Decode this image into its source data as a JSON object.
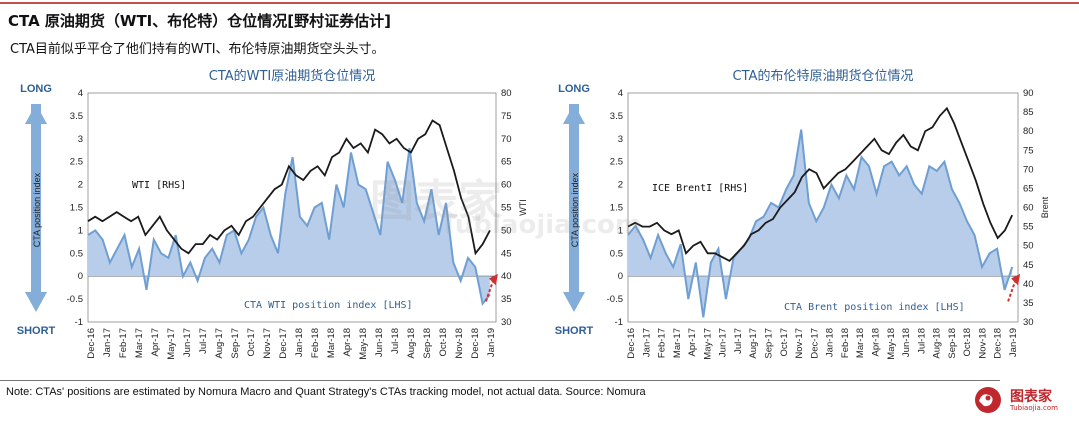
{
  "header": {
    "title": "CTA 原油期货（WTI、布伦特）仓位情况[野村证券估计]",
    "subtitle": "CTA目前似乎平仓了他们持有的WTI、布伦特原油期货空头头寸。"
  },
  "footer": {
    "note": "Note: CTAs' positions are estimated by Nomura Macro and Quant Strategy's CTAs tracking model, not actual data. Source: Nomura",
    "logo_text": "图表家",
    "logo_url": "Tubiaojia.com"
  },
  "colors": {
    "price_line": "#1a1a1a",
    "area_fill": "#b8cde9",
    "area_line": "#6f9fd2",
    "arrow_blue": "#6f9fd2",
    "arrow_red": "#d03030",
    "title_blue": "#2f5f95"
  },
  "chart_data": [
    {
      "type": "area",
      "title": "CTA的WTI原油期货仓位情况",
      "long_label": "LONG",
      "short_label": "SHORT",
      "ylabel": "CTA position index",
      "y2label": "WTI",
      "ylim": [
        -1,
        4
      ],
      "y2lim": [
        30,
        80
      ],
      "yticks": [
        "4",
        "3.5",
        "3",
        "2.5",
        "2",
        "1.5",
        "1",
        "0.5",
        "0",
        "-0.5",
        "-1"
      ],
      "y2ticks": [
        "80",
        "75",
        "70",
        "65",
        "60",
        "55",
        "50",
        "45",
        "40",
        "35",
        "30"
      ],
      "x_labels": [
        "Dec-16",
        "Jan-17",
        "Feb-17",
        "Mar-17",
        "Apr-17",
        "May-17",
        "Jun-17",
        "Jul-17",
        "Aug-17",
        "Sep-17",
        "Oct-17",
        "Nov-17",
        "Dec-17",
        "Jan-18",
        "Feb-18",
        "Mar-18",
        "Apr-18",
        "May-18",
        "Jun-18",
        "Jul-18",
        "Aug-18",
        "Sep-18",
        "Oct-18",
        "Nov-18",
        "Dec-18",
        "Jan-19"
      ],
      "series": [
        {
          "name": "CTA WTI position index [LHS]",
          "axis": "left",
          "values": [
            0.9,
            1.0,
            0.8,
            0.3,
            0.6,
            0.9,
            0.2,
            0.6,
            -0.3,
            0.8,
            0.5,
            0.4,
            0.9,
            0.0,
            0.3,
            -0.1,
            0.4,
            0.6,
            0.3,
            0.9,
            1.0,
            0.5,
            0.8,
            1.3,
            1.5,
            0.9,
            0.5,
            1.8,
            2.6,
            1.3,
            1.1,
            1.5,
            1.6,
            0.8,
            2.0,
            1.5,
            2.7,
            2.0,
            1.9,
            1.4,
            0.9,
            2.5,
            2.1,
            1.6,
            2.8,
            1.6,
            1.2,
            1.9,
            0.9,
            1.6,
            0.3,
            -0.1,
            0.4,
            0.2,
            -0.6,
            -0.4
          ]
        },
        {
          "name": "WTI [RHS]",
          "axis": "right",
          "values": [
            52,
            53,
            52,
            53,
            54,
            53,
            52,
            53,
            49,
            51,
            53,
            50,
            48,
            46,
            45,
            47,
            47,
            49,
            48,
            50,
            51,
            49,
            52,
            53,
            55,
            57,
            59,
            60,
            64,
            62,
            61,
            63,
            64,
            62,
            66,
            67,
            70,
            68,
            69,
            67,
            72,
            71,
            69,
            70,
            68,
            67,
            70,
            71,
            74,
            73,
            68,
            63,
            57,
            53,
            45,
            47,
            50
          ]
        }
      ],
      "annotations": [
        "WTI [RHS]",
        "CTA WTI position index [LHS]"
      ]
    },
    {
      "type": "area",
      "title": "CTA的布伦特原油期货仓位情况",
      "long_label": "LONG",
      "short_label": "SHORT",
      "ylabel": "CTA position index",
      "y2label": "Brent",
      "ylim": [
        -1,
        4
      ],
      "y2lim": [
        30,
        90
      ],
      "yticks": [
        "4",
        "3.5",
        "3",
        "2.5",
        "2",
        "1.5",
        "1",
        "0.5",
        "0",
        "-0.5",
        "-1"
      ],
      "y2ticks": [
        "90",
        "85",
        "80",
        "75",
        "70",
        "65",
        "60",
        "55",
        "50",
        "45",
        "40",
        "35",
        "30"
      ],
      "x_labels": [
        "Dec-16",
        "Jan-17",
        "Feb-17",
        "Mar-17",
        "Apr-17",
        "May-17",
        "Jun-17",
        "Jul-17",
        "Aug-17",
        "Sep-17",
        "Oct-17",
        "Nov-17",
        "Dec-17",
        "Jan-18",
        "Feb-18",
        "Mar-18",
        "Apr-18",
        "May-18",
        "Jun-18",
        "Jul-18",
        "Aug-18",
        "Sep-18",
        "Oct-18",
        "Nov-18",
        "Dec-18",
        "Jan-19"
      ],
      "series": [
        {
          "name": "CTA Brent position index [LHS]",
          "axis": "left",
          "values": [
            0.9,
            1.1,
            0.8,
            0.4,
            0.9,
            0.5,
            0.2,
            0.7,
            -0.5,
            0.3,
            -0.9,
            0.3,
            0.6,
            -0.5,
            0.4,
            0.6,
            0.8,
            1.2,
            1.3,
            1.6,
            1.5,
            1.9,
            2.2,
            3.2,
            1.6,
            1.2,
            1.5,
            2.0,
            1.7,
            2.2,
            1.9,
            2.6,
            2.4,
            1.8,
            2.4,
            2.5,
            2.2,
            2.4,
            2.0,
            1.8,
            2.4,
            2.3,
            2.5,
            1.9,
            1.6,
            1.2,
            0.9,
            0.2,
            0.5,
            0.6,
            -0.3,
            0.2
          ]
        },
        {
          "name": "ICE BrentI [RHS]",
          "axis": "right",
          "values": [
            55,
            56,
            55,
            55,
            56,
            54,
            53,
            54,
            48,
            50,
            51,
            48,
            48,
            47,
            46,
            48,
            50,
            53,
            54,
            56,
            57,
            60,
            62,
            64,
            68,
            70,
            69,
            65,
            67,
            69,
            70,
            72,
            74,
            76,
            78,
            75,
            74,
            77,
            79,
            76,
            75,
            80,
            81,
            84,
            86,
            82,
            77,
            72,
            67,
            61,
            56,
            52,
            54,
            58
          ]
        }
      ],
      "annotations": [
        "ICE BrentI [RHS]",
        "CTA Brent position index [LHS]"
      ]
    }
  ]
}
